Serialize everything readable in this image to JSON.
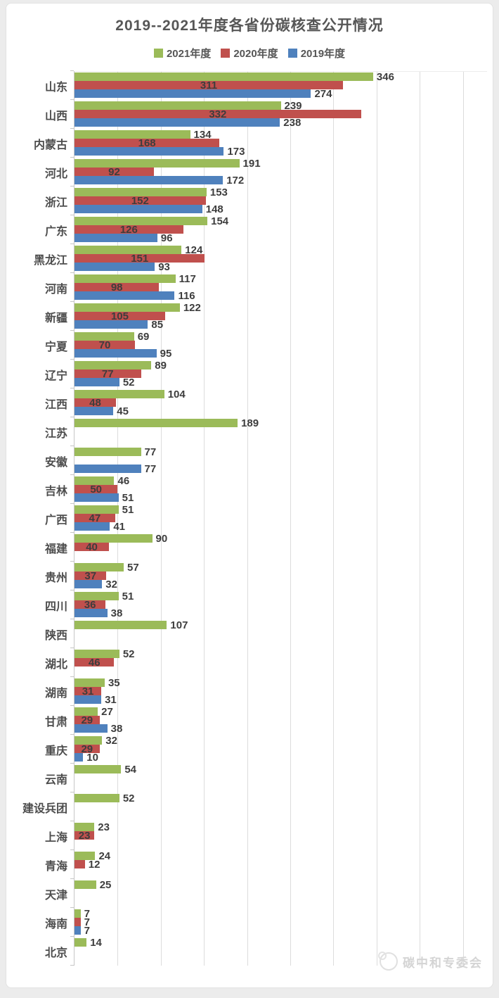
{
  "page": {
    "background": "#ececec",
    "card_background": "#ffffff"
  },
  "chart_data": {
    "type": "bar",
    "orientation": "horizontal",
    "title": "2019--2021年度各省份碳核查公开情况",
    "legend_position": "top",
    "grid": true,
    "value_labels": true,
    "xlim": [
      0,
      478
    ],
    "gridline_every": 50,
    "categories": [
      "山东",
      "山西",
      "内蒙古",
      "河北",
      "浙江",
      "广东",
      "黑龙江",
      "河南",
      "新疆",
      "宁夏",
      "辽宁",
      "江西",
      "江苏",
      "安徽",
      "吉林",
      "广西",
      "福建",
      "贵州",
      "四川",
      "陕西",
      "湖北",
      "湖南",
      "甘肃",
      "重庆",
      "云南",
      "建设兵团",
      "上海",
      "青海",
      "天津",
      "海南",
      "北京"
    ],
    "series": [
      {
        "name": "2021年度",
        "color": "#9BBB59",
        "label_position": "outside-end",
        "values": [
          346,
          239,
          134,
          191,
          153,
          154,
          124,
          117,
          122,
          69,
          89,
          104,
          189,
          77,
          46,
          51,
          90,
          57,
          51,
          107,
          52,
          35,
          27,
          32,
          54,
          52,
          23,
          24,
          25,
          7,
          14
        ]
      },
      {
        "name": "2020年度",
        "color": "#C0504D",
        "label_position": "inside-center",
        "values": [
          311,
          332,
          168,
          92,
          152,
          126,
          151,
          98,
          105,
          70,
          77,
          48,
          null,
          null,
          50,
          47,
          40,
          37,
          36,
          null,
          46,
          31,
          29,
          29,
          null,
          null,
          23,
          12,
          null,
          7,
          null
        ]
      },
      {
        "name": "2019年度",
        "color": "#4F81BD",
        "label_position": "outside-end",
        "values": [
          274,
          238,
          173,
          172,
          148,
          96,
          93,
          116,
          85,
          95,
          52,
          45,
          null,
          77,
          51,
          41,
          null,
          32,
          38,
          null,
          null,
          31,
          38,
          10,
          null,
          null,
          null,
          null,
          null,
          7,
          null
        ]
      }
    ]
  },
  "watermark": {
    "text": "碳中和专委会"
  },
  "colors": {
    "grid": "#dcdcdc",
    "axis": "#c6c6c6",
    "value_label": "#3d3d3d",
    "category_label": "#4d4d4d",
    "title": "#565656"
  }
}
